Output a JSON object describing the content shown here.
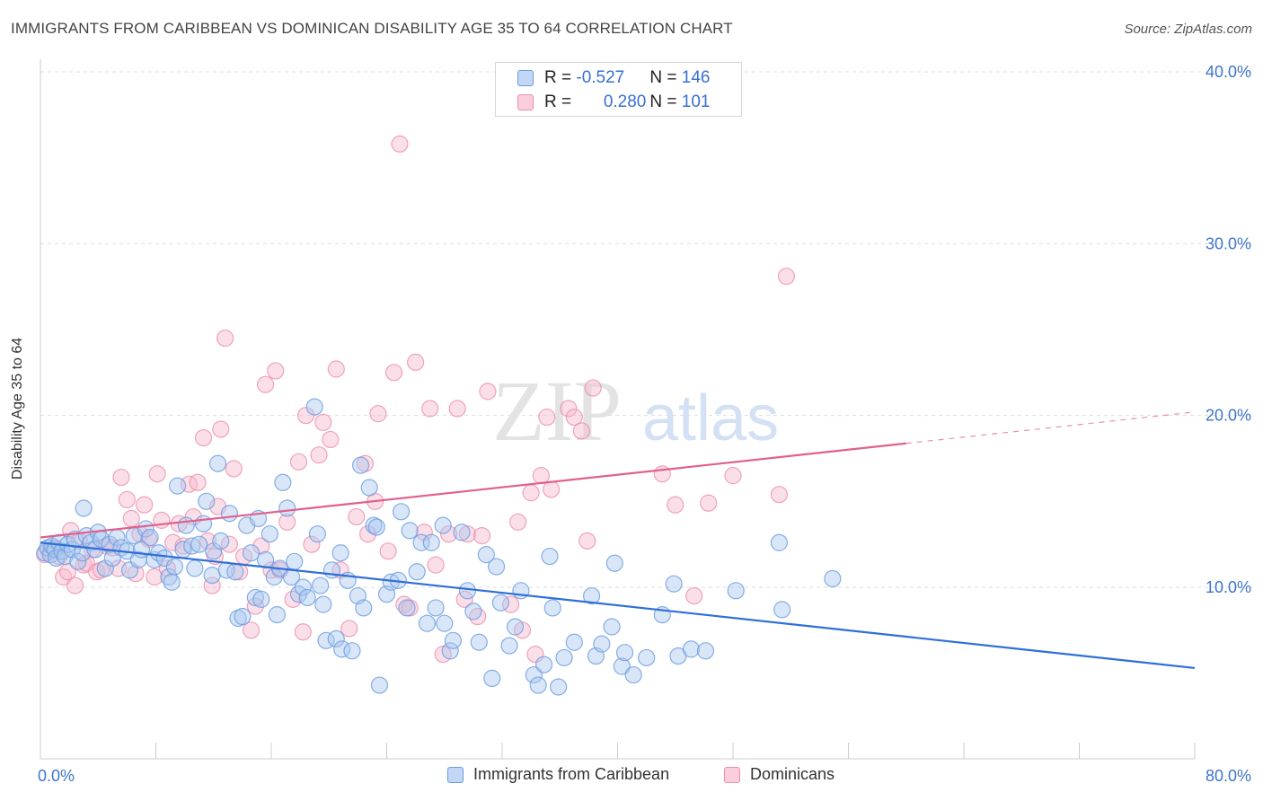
{
  "header": {
    "title": "IMMIGRANTS FROM CARIBBEAN VS DOMINICAN DISABILITY AGE 35 TO 64 CORRELATION CHART",
    "source": "Source: ZipAtlas.com"
  },
  "legend_box": {
    "rows": [
      {
        "r_label": "R = ",
        "r_value": "-0.527",
        "n_label": "N = ",
        "n_value": "146"
      },
      {
        "r_label": "R = ",
        "r_value": "0.280",
        "n_label": "N = ",
        "n_value": "101"
      }
    ]
  },
  "bottom_legend": [
    "Immigrants from Caribbean",
    "Dominicans"
  ],
  "watermark": {
    "part1": "ZIP",
    "part2": "atlas"
  },
  "colors": {
    "blue_fill": "#a9c7f0",
    "blue_stroke": "#6b9be0",
    "blue_line": "#2f6fd6",
    "pink_fill": "#f6b8cc",
    "pink_stroke": "#ec8fad",
    "pink_line": "#e0608e",
    "axis_text": "#3f74cc",
    "grid": "#dddddd"
  },
  "chart_data": {
    "type": "scatter",
    "title": "IMMIGRANTS FROM CARIBBEAN VS DOMINICAN DISABILITY AGE 35 TO 64 CORRELATION CHART",
    "xlabel": "",
    "ylabel": "Disability Age 35 to 64",
    "xlim": [
      0,
      80
    ],
    "ylim": [
      0,
      42
    ],
    "x_tick_labels": [
      "0.0%",
      "80.0%"
    ],
    "y_ticks": [
      10,
      20,
      30,
      40
    ],
    "y_tick_labels": [
      "10.0%",
      "20.0%",
      "30.0%",
      "40.0%"
    ],
    "grid": true,
    "legend_placement": "top-center",
    "series": [
      {
        "name": "Immigrants from Caribbean",
        "color": "#a9c7f0",
        "R": -0.527,
        "N": 146,
        "trend": {
          "x": [
            0,
            80
          ],
          "y": [
            12.6,
            5.3
          ],
          "dashed_from_x": null
        },
        "points": [
          [
            0.3,
            12.0
          ],
          [
            0.5,
            12.3
          ],
          [
            0.7,
            11.9
          ],
          [
            0.8,
            12.4
          ],
          [
            1.0,
            12.2
          ],
          [
            1.1,
            11.7
          ],
          [
            1.3,
            12.6
          ],
          [
            1.5,
            12.1
          ],
          [
            1.7,
            11.8
          ],
          [
            1.9,
            12.5
          ],
          [
            2.2,
            12.2
          ],
          [
            2.4,
            12.8
          ],
          [
            2.6,
            11.5
          ],
          [
            2.9,
            12.0
          ],
          [
            3.0,
            14.6
          ],
          [
            3.2,
            13.0
          ],
          [
            3.5,
            12.6
          ],
          [
            3.8,
            12.2
          ],
          [
            4.0,
            13.2
          ],
          [
            4.2,
            12.8
          ],
          [
            4.5,
            11.1
          ],
          [
            4.8,
            12.5
          ],
          [
            5.0,
            11.7
          ],
          [
            5.3,
            12.9
          ],
          [
            5.6,
            12.3
          ],
          [
            6.0,
            12.1
          ],
          [
            6.2,
            11.0
          ],
          [
            6.5,
            13.0
          ],
          [
            6.8,
            11.6
          ],
          [
            7.0,
            12.2
          ],
          [
            7.3,
            13.4
          ],
          [
            7.6,
            12.9
          ],
          [
            7.9,
            11.6
          ],
          [
            8.2,
            12.0
          ],
          [
            8.6,
            11.7
          ],
          [
            8.9,
            10.6
          ],
          [
            9.1,
            10.3
          ],
          [
            9.3,
            11.2
          ],
          [
            9.5,
            15.9
          ],
          [
            9.9,
            12.2
          ],
          [
            10.1,
            13.6
          ],
          [
            10.5,
            12.4
          ],
          [
            10.7,
            11.1
          ],
          [
            11.0,
            12.5
          ],
          [
            11.3,
            13.7
          ],
          [
            11.5,
            15.0
          ],
          [
            11.9,
            10.7
          ],
          [
            12.0,
            12.1
          ],
          [
            12.3,
            17.2
          ],
          [
            12.5,
            12.7
          ],
          [
            12.9,
            11.0
          ],
          [
            13.1,
            14.3
          ],
          [
            13.5,
            10.9
          ],
          [
            13.7,
            8.2
          ],
          [
            14.0,
            8.3
          ],
          [
            14.3,
            13.6
          ],
          [
            14.6,
            12.0
          ],
          [
            14.9,
            9.4
          ],
          [
            15.1,
            14.0
          ],
          [
            15.3,
            9.3
          ],
          [
            15.6,
            11.6
          ],
          [
            15.9,
            13.1
          ],
          [
            16.2,
            10.6
          ],
          [
            16.4,
            8.4
          ],
          [
            16.6,
            11.1
          ],
          [
            16.8,
            16.1
          ],
          [
            17.1,
            14.6
          ],
          [
            17.4,
            10.6
          ],
          [
            17.6,
            11.5
          ],
          [
            17.9,
            9.6
          ],
          [
            18.2,
            10.0
          ],
          [
            18.5,
            9.4
          ],
          [
            19.0,
            20.5
          ],
          [
            19.2,
            13.1
          ],
          [
            19.4,
            10.1
          ],
          [
            19.6,
            9.0
          ],
          [
            19.8,
            6.9
          ],
          [
            20.2,
            11.0
          ],
          [
            20.5,
            7.0
          ],
          [
            20.8,
            12.0
          ],
          [
            20.9,
            6.4
          ],
          [
            21.3,
            10.4
          ],
          [
            21.6,
            6.3
          ],
          [
            22.0,
            9.5
          ],
          [
            22.2,
            17.1
          ],
          [
            22.4,
            8.8
          ],
          [
            22.8,
            15.8
          ],
          [
            23.1,
            13.6
          ],
          [
            23.3,
            13.5
          ],
          [
            23.5,
            4.3
          ],
          [
            24.0,
            9.6
          ],
          [
            24.3,
            10.3
          ],
          [
            24.8,
            10.4
          ],
          [
            25.0,
            14.4
          ],
          [
            25.4,
            8.8
          ],
          [
            25.6,
            13.3
          ],
          [
            26.1,
            10.9
          ],
          [
            26.4,
            12.6
          ],
          [
            26.8,
            7.9
          ],
          [
            27.1,
            12.6
          ],
          [
            27.4,
            8.8
          ],
          [
            27.9,
            13.6
          ],
          [
            28.0,
            7.9
          ],
          [
            28.4,
            6.3
          ],
          [
            28.6,
            6.9
          ],
          [
            29.2,
            13.2
          ],
          [
            29.6,
            9.8
          ],
          [
            30.0,
            8.6
          ],
          [
            30.4,
            6.8
          ],
          [
            30.9,
            11.9
          ],
          [
            31.3,
            4.7
          ],
          [
            31.6,
            11.2
          ],
          [
            31.9,
            9.1
          ],
          [
            32.5,
            6.6
          ],
          [
            32.9,
            7.7
          ],
          [
            33.3,
            9.8
          ],
          [
            34.2,
            4.9
          ],
          [
            34.5,
            4.3
          ],
          [
            34.9,
            5.5
          ],
          [
            35.3,
            11.8
          ],
          [
            35.5,
            8.8
          ],
          [
            35.9,
            4.2
          ],
          [
            36.3,
            5.9
          ],
          [
            37.0,
            6.8
          ],
          [
            38.2,
            9.5
          ],
          [
            38.5,
            6.0
          ],
          [
            38.9,
            6.7
          ],
          [
            39.6,
            7.7
          ],
          [
            39.8,
            11.4
          ],
          [
            40.3,
            5.4
          ],
          [
            40.5,
            6.2
          ],
          [
            41.1,
            4.9
          ],
          [
            42.0,
            5.9
          ],
          [
            43.1,
            8.4
          ],
          [
            43.9,
            10.2
          ],
          [
            44.2,
            6.0
          ],
          [
            45.1,
            6.4
          ],
          [
            46.1,
            6.3
          ],
          [
            48.2,
            9.8
          ],
          [
            51.2,
            12.6
          ],
          [
            51.4,
            8.7
          ],
          [
            54.9,
            10.5
          ]
        ]
      },
      {
        "name": "Dominicans",
        "color": "#f6b8cc",
        "R": 0.28,
        "N": 101,
        "trend": {
          "x": [
            0,
            80
          ],
          "y": [
            12.9,
            20.2
          ],
          "dashed_from_x": 60
        },
        "points": [
          [
            0.3,
            11.9
          ],
          [
            0.7,
            12.1
          ],
          [
            1.0,
            12.3
          ],
          [
            1.3,
            11.8
          ],
          [
            1.6,
            10.6
          ],
          [
            1.9,
            10.9
          ],
          [
            2.1,
            13.3
          ],
          [
            2.4,
            10.1
          ],
          [
            2.7,
            12.7
          ],
          [
            3.0,
            11.3
          ],
          [
            3.2,
            11.4
          ],
          [
            3.6,
            12.2
          ],
          [
            3.9,
            10.9
          ],
          [
            4.2,
            11.0
          ],
          [
            4.6,
            12.4
          ],
          [
            5.0,
            12.3
          ],
          [
            5.4,
            11.1
          ],
          [
            5.6,
            16.4
          ],
          [
            6.0,
            15.1
          ],
          [
            6.3,
            14.0
          ],
          [
            6.6,
            10.8
          ],
          [
            6.9,
            13.1
          ],
          [
            7.2,
            14.8
          ],
          [
            7.5,
            12.8
          ],
          [
            7.9,
            10.6
          ],
          [
            8.1,
            16.6
          ],
          [
            8.4,
            13.9
          ],
          [
            8.8,
            11.1
          ],
          [
            9.2,
            12.6
          ],
          [
            9.6,
            13.7
          ],
          [
            9.9,
            12.4
          ],
          [
            10.3,
            16.0
          ],
          [
            10.6,
            14.1
          ],
          [
            10.9,
            16.1
          ],
          [
            11.3,
            18.7
          ],
          [
            11.6,
            12.7
          ],
          [
            11.9,
            10.1
          ],
          [
            12.1,
            11.8
          ],
          [
            12.3,
            14.7
          ],
          [
            12.5,
            19.2
          ],
          [
            12.8,
            24.5
          ],
          [
            13.1,
            12.5
          ],
          [
            13.4,
            16.9
          ],
          [
            13.8,
            10.9
          ],
          [
            14.1,
            11.8
          ],
          [
            14.6,
            7.5
          ],
          [
            14.9,
            8.9
          ],
          [
            15.3,
            12.4
          ],
          [
            15.6,
            21.8
          ],
          [
            16.0,
            11.0
          ],
          [
            16.3,
            22.6
          ],
          [
            16.6,
            11.0
          ],
          [
            17.1,
            13.8
          ],
          [
            17.5,
            9.3
          ],
          [
            17.9,
            17.3
          ],
          [
            18.2,
            7.4
          ],
          [
            18.4,
            20.0
          ],
          [
            18.8,
            12.5
          ],
          [
            19.3,
            17.7
          ],
          [
            19.6,
            19.6
          ],
          [
            20.1,
            18.6
          ],
          [
            20.5,
            22.7
          ],
          [
            20.8,
            11.0
          ],
          [
            21.4,
            7.6
          ],
          [
            21.9,
            14.1
          ],
          [
            22.5,
            17.2
          ],
          [
            22.7,
            13.1
          ],
          [
            23.2,
            15.0
          ],
          [
            23.4,
            20.1
          ],
          [
            24.1,
            12.1
          ],
          [
            24.5,
            22.5
          ],
          [
            24.9,
            35.8
          ],
          [
            25.2,
            9.0
          ],
          [
            25.6,
            8.8
          ],
          [
            26.0,
            23.1
          ],
          [
            26.6,
            13.2
          ],
          [
            27.0,
            20.4
          ],
          [
            27.4,
            11.3
          ],
          [
            27.9,
            6.1
          ],
          [
            28.3,
            13.1
          ],
          [
            28.9,
            20.4
          ],
          [
            29.4,
            9.3
          ],
          [
            29.6,
            13.1
          ],
          [
            30.3,
            8.3
          ],
          [
            30.6,
            13.0
          ],
          [
            31.0,
            21.4
          ],
          [
            32.6,
            9.0
          ],
          [
            33.1,
            13.8
          ],
          [
            33.4,
            7.5
          ],
          [
            34.0,
            15.5
          ],
          [
            34.3,
            6.1
          ],
          [
            34.7,
            16.5
          ],
          [
            35.1,
            19.9
          ],
          [
            35.4,
            15.7
          ],
          [
            36.6,
            20.4
          ],
          [
            37.0,
            19.9
          ],
          [
            37.5,
            19.1
          ],
          [
            37.9,
            12.7
          ],
          [
            38.3,
            21.6
          ],
          [
            43.1,
            16.6
          ],
          [
            44.0,
            14.8
          ],
          [
            45.3,
            9.5
          ],
          [
            46.3,
            14.9
          ],
          [
            48.0,
            16.5
          ],
          [
            51.2,
            15.4
          ],
          [
            51.7,
            28.1
          ]
        ]
      }
    ]
  }
}
